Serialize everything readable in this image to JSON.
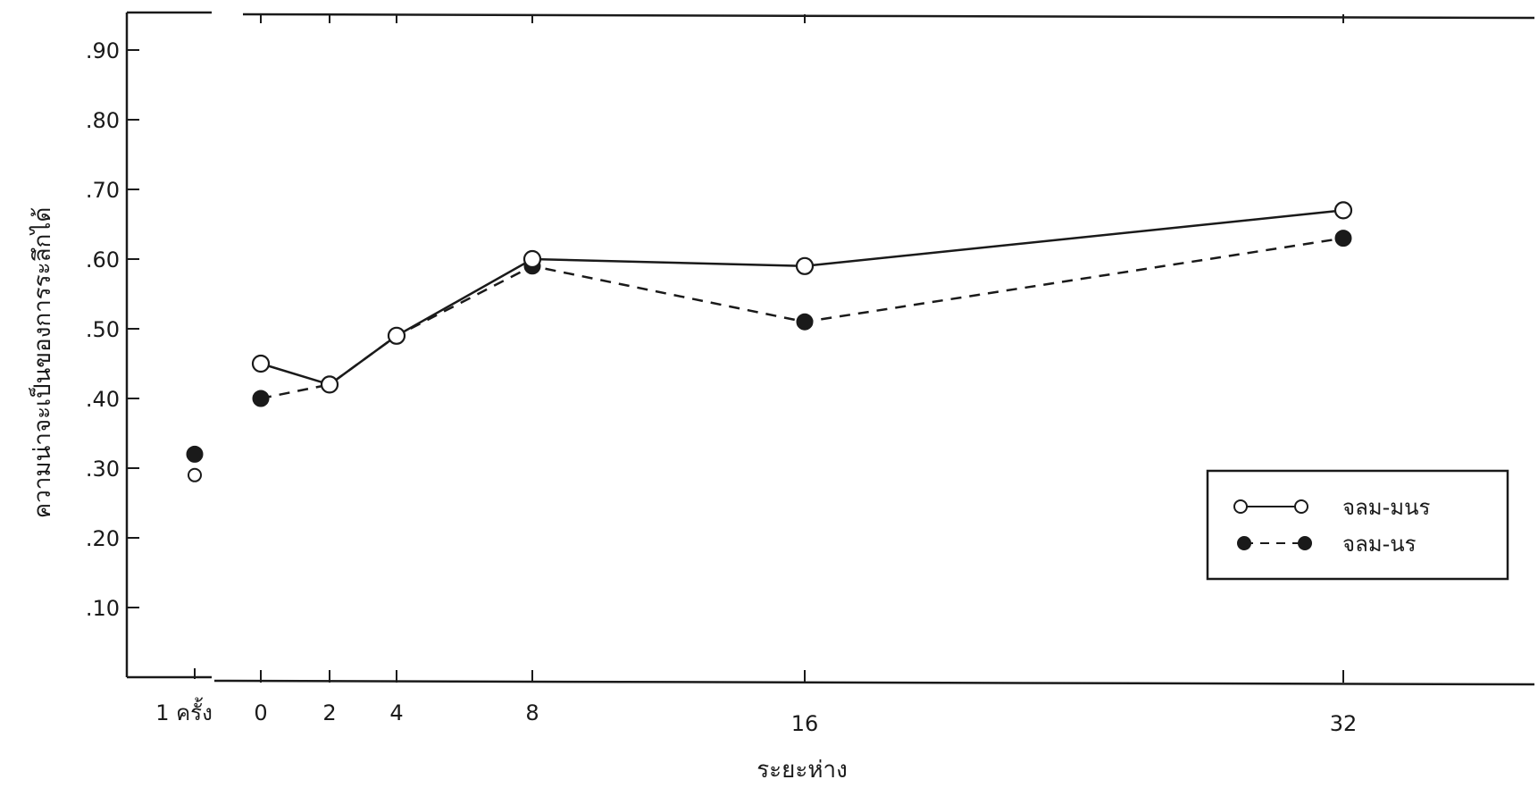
{
  "chart_data": {
    "type": "line",
    "xlabel": "ระยะห่าง",
    "ylabel": "ความน่าจะเป็นของการระลึกได้",
    "ylim": [
      0,
      0.95
    ],
    "y_ticks": [
      ".10",
      ".20",
      ".30",
      ".40",
      ".50",
      ".60",
      ".70",
      ".80",
      ".90"
    ],
    "y_tick_values": [
      0.1,
      0.2,
      0.3,
      0.4,
      0.5,
      0.6,
      0.7,
      0.8,
      0.9
    ],
    "separate_category": {
      "label": "1 ครั้ง"
    },
    "x_ticks": [
      "0",
      "2",
      "4",
      "8",
      "16",
      "32"
    ],
    "x_tick_values": [
      0,
      2,
      4,
      8,
      16,
      32
    ],
    "legend_position": "right",
    "series": [
      {
        "name": "จลม-มนร",
        "marker": "open-circle",
        "line_style": "solid",
        "color": "#1a1a1a",
        "single_presentation": 0.29,
        "x": [
          0,
          2,
          4,
          8,
          16,
          32
        ],
        "y": [
          0.45,
          0.42,
          0.49,
          0.6,
          0.59,
          0.67
        ]
      },
      {
        "name": "จลม-นร",
        "marker": "filled-circle",
        "line_style": "dashed",
        "color": "#1a1a1a",
        "single_presentation": 0.32,
        "x": [
          0,
          2,
          4,
          8,
          16,
          32
        ],
        "y": [
          0.4,
          0.42,
          0.49,
          0.59,
          0.51,
          0.63
        ]
      }
    ]
  }
}
